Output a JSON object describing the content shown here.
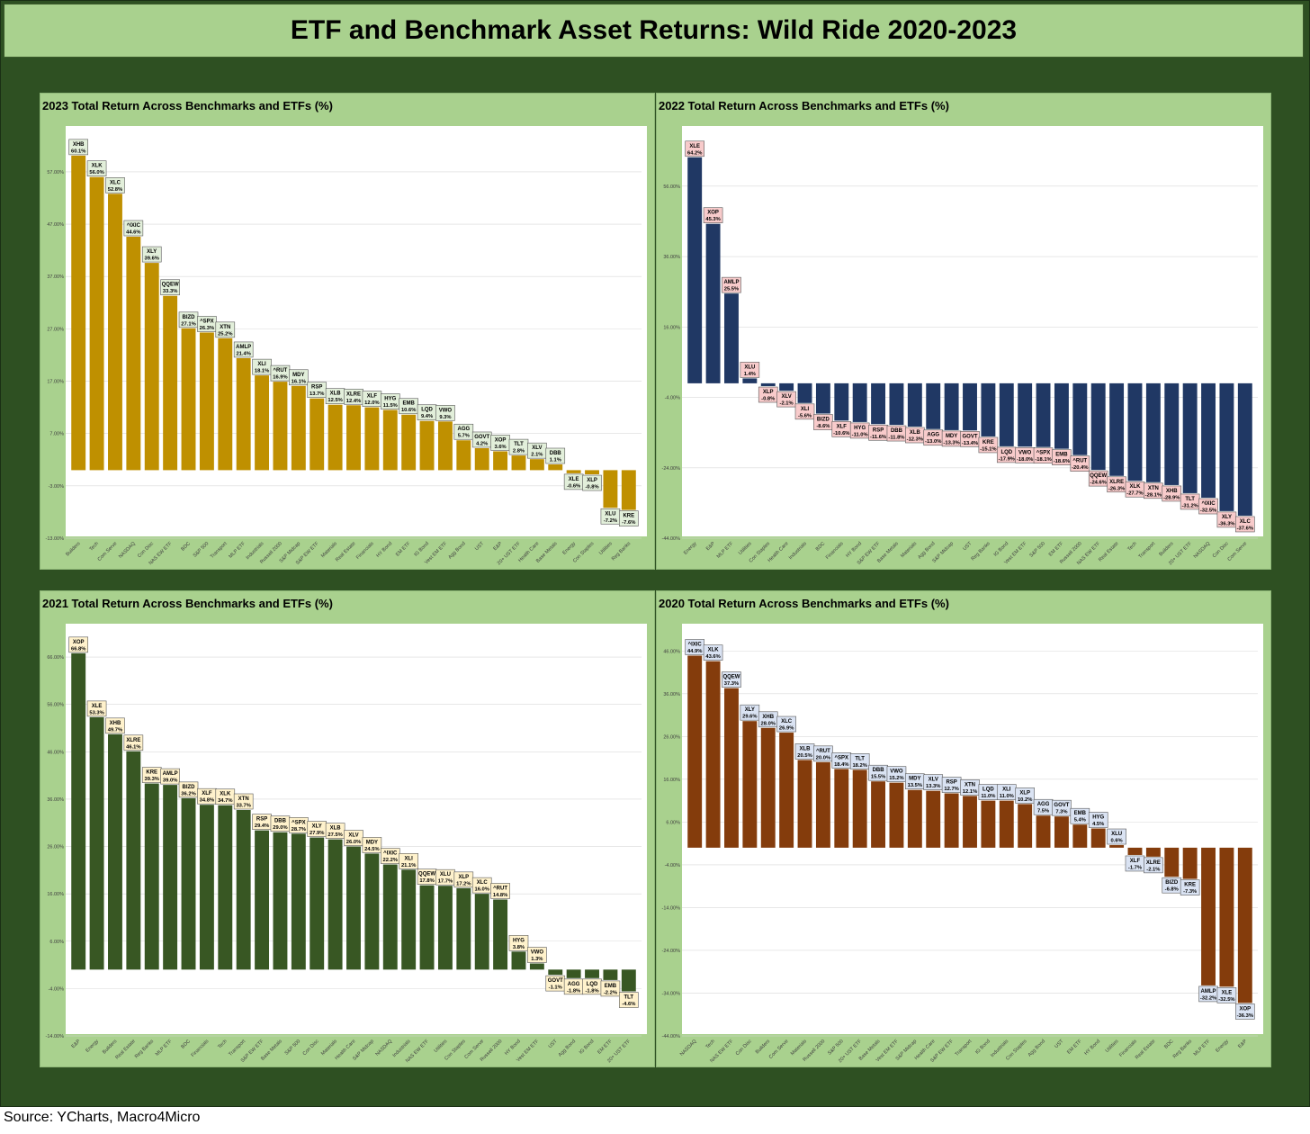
{
  "title": "ETF and Benchmark Asset Returns: Wild Ride 2020-2023",
  "source": "Source: YCharts, Macro4Micro",
  "colors": {
    "2023": "#bf9000",
    "2022": "#203864",
    "2021": "#385723",
    "2020": "#843c0c"
  },
  "chart_data": [
    {
      "type": "bar",
      "title": "2023 Total Return Across Benchmarks and ETFs (%)",
      "yticks": [
        "57.00%",
        "47.00%",
        "37.00%",
        "27.00%",
        "17.00%",
        "7.00%",
        "-3.00%",
        "-13.00%"
      ],
      "ylim": [
        -13,
        63
      ],
      "grid": true,
      "label_bg": "#e2efda",
      "tickers": [
        "XHB",
        "XLK",
        "XLC",
        "^IXIC",
        "XLY",
        "QQEW",
        "BIZD",
        "^SPX",
        "XTN",
        "AMLP",
        "XLI",
        "^RUT",
        "MDY",
        "RSP",
        "XLB",
        "XLRE",
        "XLF",
        "HYG",
        "EMB",
        "LQD",
        "VWO",
        "AGG",
        "GOVT",
        "XOP",
        "TLT",
        "XLV",
        "DBB",
        "XLE",
        "XLP",
        "XLU",
        "KRE"
      ],
      "categories": [
        "Builders",
        "Tech",
        "Com Serve",
        "NASDAQ",
        "Con Disc",
        "NAS EW ETF",
        "BDC",
        "S&P 500",
        "Transport",
        "MLP ETF",
        "Industrials",
        "Russell 2000",
        "S&P Midcap",
        "S&P EW ETF",
        "Materials",
        "Real Estate",
        "Financials",
        "HY Bond",
        "EM ETF",
        "IG Bond",
        "Vest EM ETF",
        "Agg Bond",
        "UST",
        "E&P",
        "20+ UST ETF",
        "Health Care",
        "Base Metals",
        "Energy",
        "Con Staples",
        "Utilities",
        "Reg Banks"
      ],
      "values": [
        60.1,
        56.0,
        52.8,
        44.6,
        39.6,
        33.3,
        27.1,
        26.3,
        25.2,
        21.4,
        18.1,
        16.9,
        16.1,
        13.7,
        12.5,
        12.4,
        12.0,
        11.5,
        10.6,
        9.4,
        9.3,
        5.7,
        4.2,
        3.6,
        2.8,
        2.1,
        1.1,
        -0.6,
        -0.8,
        -7.2,
        -7.6
      ]
    },
    {
      "type": "bar",
      "title": "2022 Total Return Across Benchmarks and ETFs (%)",
      "yticks": [
        "56.00%",
        "36.00%",
        "16.00%",
        "-4.00%",
        "-24.00%",
        "-44.00%"
      ],
      "ylim": [
        -44,
        69
      ],
      "grid": true,
      "label_bg": "#f8cbcb",
      "tickers": [
        "XLE",
        "XOP",
        "AMLP",
        "XLU",
        "XLP",
        "XLV",
        "XLI",
        "BIZD",
        "XLF",
        "HYG",
        "RSP",
        "DBB",
        "XLB",
        "AGG",
        "MDY",
        "GOVT",
        "KRE",
        "LQD",
        "VWO",
        "^SPX",
        "EMB",
        "^RUT",
        "QQEW",
        "XLRE",
        "XLK",
        "XTN",
        "XHB",
        "TLT",
        "^IXIC",
        "XLY",
        "XLC"
      ],
      "categories": [
        "Energy",
        "E&P",
        "MLP ETF",
        "Utilities",
        "Con Staples",
        "Health Care",
        "Industrials",
        "BDC",
        "Financials",
        "HY Bond",
        "S&P EW ETF",
        "Base Metals",
        "Materials",
        "Agg Bond",
        "S&P Midcap",
        "UST",
        "Reg Banks",
        "IG Bond",
        "Vest EM ETF",
        "S&P 500",
        "EM ETF",
        "Russell 2000",
        "NAS EW ETF",
        "Real Estate",
        "Tech",
        "Transport",
        "Builders",
        "20+ UST ETF",
        "NASDAQ",
        "Con Disc",
        "Com Serve"
      ],
      "values": [
        64.2,
        45.3,
        25.5,
        1.4,
        -0.8,
        -2.1,
        -5.6,
        -8.6,
        -10.6,
        -11.0,
        -11.6,
        -11.8,
        -12.3,
        -13.0,
        -13.3,
        -13.4,
        -15.1,
        -17.9,
        -18.0,
        -18.1,
        -18.6,
        -20.4,
        -24.6,
        -26.3,
        -27.7,
        -28.1,
        -28.9,
        -31.2,
        -32.5,
        -36.3,
        -37.6
      ]
    },
    {
      "type": "bar",
      "title": "2021 Total Return Across Benchmarks and ETFs (%)",
      "yticks": [
        "66.00%",
        "56.00%",
        "46.00%",
        "36.00%",
        "26.00%",
        "16.00%",
        "6.00%",
        "-4.00%",
        "-14.00%"
      ],
      "ylim": [
        -14,
        70
      ],
      "grid": true,
      "label_bg": "#fff2cc",
      "tickers": [
        "XOP",
        "XLE",
        "XHB",
        "XLRE",
        "KRE",
        "AMLP",
        "BIZD",
        "XLF",
        "XLK",
        "XTN",
        "RSP",
        "DBB",
        "^SPX",
        "XLY",
        "XLB",
        "XLV",
        "MDY",
        "^IXIC",
        "XLI",
        "QQEW",
        "XLU",
        "XLP",
        "XLC",
        "^RUT",
        "HYG",
        "VWO",
        "GOVT",
        "AGG",
        "LQD",
        "EMB",
        "TLT"
      ],
      "categories": [
        "E&P",
        "Energy",
        "Builders",
        "Real Estate",
        "Reg Banks",
        "MLP ETF",
        "BDC",
        "Financials",
        "Tech",
        "Transport",
        "S&P EW ETF",
        "Base Metals",
        "S&P 500",
        "Con Disc",
        "Materials",
        "Health Care",
        "S&P Midcap",
        "NASDAQ",
        "Industrials",
        "NAS EW ETF",
        "Utilities",
        "Con Staples",
        "Com Serve",
        "Russell 2000",
        "HY Bond",
        "Vest EM ETF",
        "UST",
        "Agg Bond",
        "IG Bond",
        "EM ETF",
        "20+ UST ETF"
      ],
      "values": [
        66.8,
        53.3,
        49.7,
        46.1,
        39.3,
        39.0,
        36.2,
        34.8,
        34.7,
        33.7,
        29.4,
        29.0,
        28.7,
        27.9,
        27.5,
        26.0,
        24.5,
        22.2,
        21.1,
        17.8,
        17.7,
        17.2,
        16.0,
        14.8,
        3.8,
        1.3,
        -1.1,
        -1.8,
        -1.8,
        -2.2,
        -4.6
      ]
    },
    {
      "type": "bar",
      "title": "2020 Total Return Across Benchmarks and ETFs (%)",
      "yticks": [
        "46.00%",
        "36.00%",
        "26.00%",
        "16.00%",
        "6.00%",
        "-4.00%",
        "-14.00%",
        "-24.00%",
        "-34.00%",
        "-44.00%"
      ],
      "ylim": [
        -44,
        49
      ],
      "grid": true,
      "label_bg": "#dae3f3",
      "tickers": [
        "^IXIC",
        "XLK",
        "QQEW",
        "XLY",
        "XHB",
        "XLC",
        "XLB",
        "^RUT",
        "^SPX",
        "TLT",
        "DBB",
        "VWO",
        "MDY",
        "XLV",
        "RSP",
        "XTN",
        "LQD",
        "XLI",
        "XLP",
        "AGG",
        "GOVT",
        "EMB",
        "HYG",
        "XLU",
        "XLF",
        "XLRE",
        "BIZD",
        "KRE",
        "AMLP",
        "XLE",
        "XOP"
      ],
      "categories": [
        "NASDAQ",
        "Tech",
        "NAS EW ETF",
        "Con Disc",
        "Builders",
        "Com Serve",
        "Materials",
        "Russell 2000",
        "S&P 500",
        "20+ UST ETF",
        "Base Metals",
        "Vest EM ETF",
        "S&P Midcap",
        "Health Care",
        "S&P EW ETF",
        "Transport",
        "IG Bond",
        "Industrials",
        "Con Staples",
        "Agg Bond",
        "UST",
        "EM ETF",
        "HY Bond",
        "Utilities",
        "Financials",
        "Real Estate",
        "BDC",
        "Reg Banks",
        "MLP ETF",
        "Energy",
        "E&P"
      ],
      "values": [
        44.9,
        43.6,
        37.3,
        29.6,
        28.0,
        26.9,
        20.5,
        20.0,
        18.4,
        18.2,
        15.5,
        15.2,
        13.5,
        13.3,
        12.7,
        12.1,
        11.0,
        11.0,
        10.2,
        7.5,
        7.3,
        5.4,
        4.5,
        0.6,
        -1.7,
        -2.1,
        -6.8,
        -7.3,
        -32.2,
        -32.5,
        -36.3
      ]
    }
  ]
}
